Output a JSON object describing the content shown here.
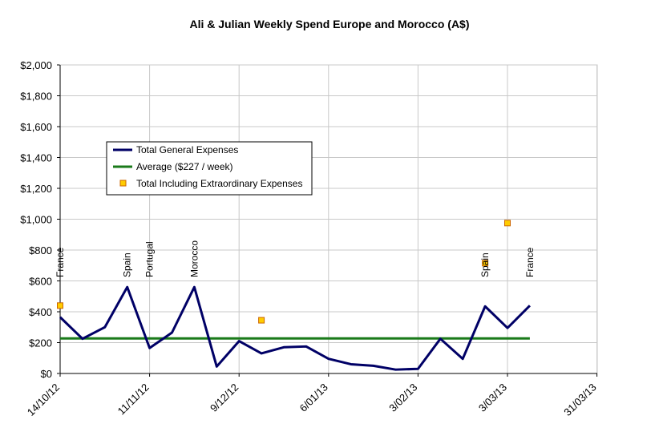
{
  "chart_data": {
    "type": "line",
    "title": "Ali & Julian Weekly Spend Europe and Morocco (A$)",
    "ylim": [
      0,
      2000
    ],
    "y_ticks": [
      "$0",
      "$200",
      "$400",
      "$600",
      "$800",
      "$1,000",
      "$1,200",
      "$1,400",
      "$1,600",
      "$1,800",
      "$2,000"
    ],
    "x_ticks": [
      "14/10/12",
      "11/11/12",
      "9/12/12",
      "6/01/13",
      "3/02/13",
      "3/03/13",
      "31/03/13"
    ],
    "grid": true,
    "legend_position": "upper-left",
    "legend": {
      "total_general": "Total General Expenses",
      "average": "Average ($227 / week)",
      "extraordinary": "Total Including Extraordinary Expenses"
    },
    "series": [
      {
        "name": "Total General Expenses",
        "color": "#000066",
        "x": [
          "14/10/12",
          "21/10/12",
          "28/10/12",
          "4/11/12",
          "11/11/12",
          "18/11/12",
          "25/11/12",
          "2/12/12",
          "9/12/12",
          "16/12/12",
          "23/12/12",
          "30/12/12",
          "6/01/13",
          "13/01/13",
          "20/01/13",
          "27/01/13",
          "3/02/13",
          "10/02/13",
          "17/02/13",
          "24/02/13",
          "3/03/13",
          "10/03/13"
        ],
        "values": [
          365,
          225,
          300,
          560,
          165,
          265,
          560,
          45,
          210,
          130,
          170,
          175,
          95,
          60,
          50,
          25,
          30,
          225,
          95,
          435,
          295,
          440
        ]
      },
      {
        "name": "Average ($227 / week)",
        "color": "#1a7a1a",
        "x": [
          "14/10/12",
          "10/03/13"
        ],
        "values": [
          227,
          227
        ]
      },
      {
        "name": "Total Including Extraordinary Expenses",
        "color": "#ffcc00",
        "x": [
          "14/10/12",
          "16/12/12",
          "24/02/13",
          "3/03/13"
        ],
        "values": [
          440,
          345,
          715,
          975
        ]
      }
    ],
    "annotations": [
      {
        "text": "France",
        "x": "14/10/12"
      },
      {
        "text": "Spain",
        "x": "4/11/12"
      },
      {
        "text": "Portugal",
        "x": "11/11/12"
      },
      {
        "text": "Morocco",
        "x": "25/11/12"
      },
      {
        "text": "Spain",
        "x": "24/02/13"
      },
      {
        "text": "France",
        "x": "10/03/13"
      }
    ]
  }
}
